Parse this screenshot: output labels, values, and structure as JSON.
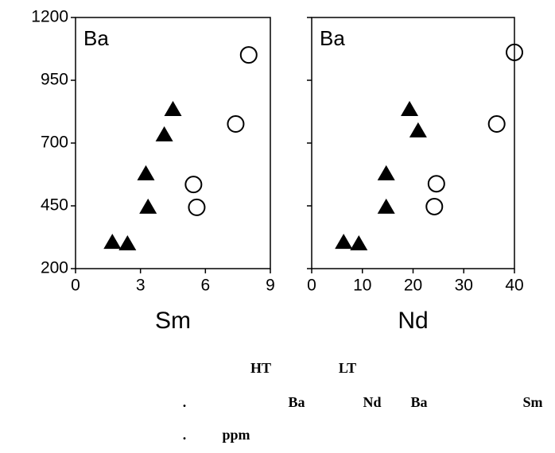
{
  "chart_data": [
    {
      "type": "scatter",
      "label": "Ba",
      "x_label": "Sm",
      "xlim": [
        0,
        9
      ],
      "xticks": [
        0,
        3,
        6,
        9
      ],
      "ylim": [
        200,
        1200
      ],
      "yticks": [
        200,
        450,
        700,
        950,
        1200
      ],
      "ytick_labels": true,
      "series": [
        {
          "marker": "triangle",
          "color": "#000000",
          "x": [
            1.7,
            2.4,
            3.35,
            3.25,
            4.1,
            4.5
          ],
          "values": [
            304,
            298,
            444,
            577,
            732,
            833
          ]
        },
        {
          "marker": "circle",
          "color": "#000000",
          "x": [
            5.45,
            5.6,
            7.4,
            8.0
          ],
          "values": [
            535,
            444,
            776,
            1051
          ]
        }
      ]
    },
    {
      "type": "scatter",
      "label": "Ba",
      "x_label": "Nd",
      "xlim": [
        0,
        40
      ],
      "xticks": [
        0,
        10,
        20,
        30,
        40
      ],
      "ylim": [
        200,
        1200
      ],
      "yticks": [
        200,
        450,
        700,
        950,
        1200
      ],
      "ytick_labels": false,
      "series": [
        {
          "marker": "triangle",
          "color": "#000000",
          "x": [
            6.3,
            9.3,
            14.7,
            14.7,
            21.0,
            19.3
          ],
          "values": [
            304,
            298,
            444,
            577,
            748,
            833
          ]
        },
        {
          "marker": "circle",
          "color": "#000000",
          "x": [
            24.6,
            24.2,
            36.5,
            40.0
          ],
          "values": [
            538,
            447,
            776,
            1061
          ]
        }
      ]
    }
  ],
  "caption": {
    "lines": [
      [
        "HT",
        "LT"
      ],
      [
        ".",
        "Ba",
        "Nd",
        "Ba",
        "Sm"
      ],
      [
        ".",
        "ppm"
      ]
    ]
  }
}
